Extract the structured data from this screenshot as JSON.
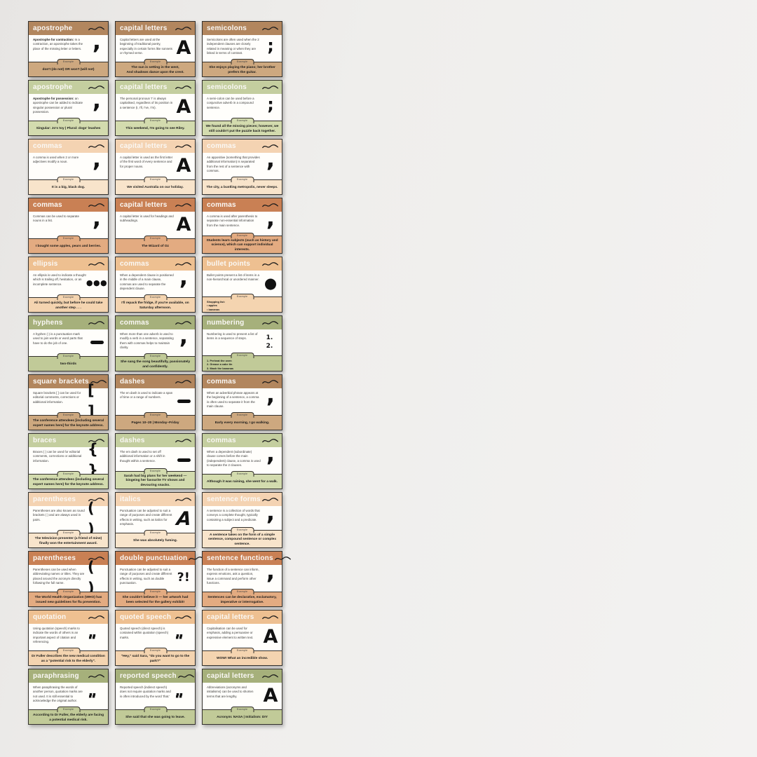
{
  "page_background": "#efeeec",
  "tab_label": "Example",
  "palette": {
    "brown": {
      "header": "#b2865e",
      "strip": "#cda87f"
    },
    "sage": {
      "header": "#c4ce9f",
      "strip": "#d3dbae"
    },
    "cream": {
      "header": "#f4d3b2",
      "strip": "#f8e4cb"
    },
    "rust": {
      "header": "#c98054",
      "strip": "#e3ab81"
    },
    "peach": {
      "header": "#eec091",
      "strip": "#f4d4b0"
    },
    "olive": {
      "header": "#a6b07b",
      "strip": "#c1ca98"
    }
  },
  "cards": [
    {
      "title": "apostrophe",
      "theme": "brown",
      "icon": "comma-icon",
      "lead": "Apostrophe for contraction:",
      "body": " In a contraction, an apostrophe takes the place of the missing letter or letters.",
      "example": "don't (do not) OR won't (will not)"
    },
    {
      "title": "capital letters",
      "theme": "brown",
      "icon": "capital-a-icon",
      "lead": "",
      "body": "Capital letters are used at the beginning of traditional poetry, especially in certain forms like sonnets or rhymed verse.",
      "example": {
        "align": "center",
        "lines": [
          "The sun is setting in the west,",
          "And shadows dance upon the crest."
        ]
      }
    },
    {
      "title": "semicolons",
      "theme": "brown",
      "icon": "semicolon-icon",
      "lead": "",
      "body": "Semicolons are often used when the 2 independent clauses are closely related in meaning or when they are linked in terms of contrast.",
      "example": "She enjoys playing the piano; her brother prefers the guitar."
    },
    {
      "title": "apostrophe",
      "theme": "sage",
      "icon": "comma-icon",
      "lead": "Apostrophe for possession:",
      "body": " an apostrophe can be added to indicate singular possession or plural possession.",
      "example": "Singular: Jo's toy  |  Plural: dogs' leashes"
    },
    {
      "title": "capital letters",
      "theme": "sage",
      "icon": "capital-a-icon",
      "lead": "",
      "body": "The personal pronoun 'I' is always capitalised, regardless of its position in a sentence (I, I'll, I've, I'm).",
      "example": "This weekend, I'm going to see Riley."
    },
    {
      "title": "semicolons",
      "theme": "sage",
      "icon": "semicolon-icon",
      "lead": "",
      "body": "A semi-colon can be used before a conjunctive adverb in a compound sentence.",
      "example": "We found all the missing pieces; however, we still couldn't put the puzzle back together."
    },
    {
      "title": "commas",
      "theme": "cream",
      "icon": "comma-icon",
      "lead": "",
      "body": "A comma is used when 2 or more adjectives modify a noun.",
      "example": "It is a big, black dog."
    },
    {
      "title": "capital letters",
      "theme": "cream",
      "icon": "capital-a-icon",
      "lead": "",
      "body": "A capital letter is used as the first letter of the first word of every sentence and for proper nouns.",
      "example": "We visited Australia on our holiday."
    },
    {
      "title": "commas",
      "theme": "cream",
      "icon": "comma-icon",
      "lead": "",
      "body": "An appositive (something that provides additional information) is separated from the rest of a sentence with commas.",
      "example": "The city, a bustling metropolis, never sleeps."
    },
    {
      "title": "commas",
      "theme": "rust",
      "icon": "comma-icon",
      "lead": "",
      "body": "Commas can be used to separate nouns in a list.",
      "example": "I bought some apples, pears and berries."
    },
    {
      "title": "capital letters",
      "theme": "rust",
      "icon": "capital-a-icon",
      "lead": "",
      "body": "A capital letter is used for headings and subheadings.",
      "example": "The Wizard of Oz"
    },
    {
      "title": "commas",
      "theme": "rust",
      "icon": "comma-icon",
      "lead": "",
      "body": "A comma is used after parenthesis to separate non-essential information from the main sentence.",
      "example": "Students learn subjects (such as history and science), which can support individual interests."
    },
    {
      "title": "ellipsis",
      "theme": "peach",
      "icon": "ellipsis-icon",
      "lead": "",
      "body": "An ellipsis is used to indicate a thought which is trailing off, hesitation, or an incomplete sentence.",
      "example": "Ali turned quickly, but before he could take another step . . ."
    },
    {
      "title": "commas",
      "theme": "peach",
      "icon": "comma-icon",
      "lead": "",
      "body": "When a dependent clause is positioned in the middle of a main clause, commas are used to separate the dependent clause.",
      "example": "I'll repack the fridge, if you're available, on Saturday afternoon."
    },
    {
      "title": "bullet points",
      "theme": "peach",
      "icon": "bullet-icon",
      "lead": "",
      "body": "Bullet points present a list of items in a non-hierarchical or unordered manner.",
      "example": {
        "align": "left",
        "lines": [
          "Shopping list:",
          "•  apples",
          "•  bananas"
        ]
      }
    },
    {
      "title": "hyphens",
      "theme": "olive",
      "icon": "hyphen-icon",
      "lead": "",
      "body": "A hyphen (-) is a punctuation mark used to join words or word parts that have to do the job of one.",
      "example": "two-thirds"
    },
    {
      "title": "commas",
      "theme": "olive",
      "icon": "comma-icon",
      "lead": "",
      "body": "When more than one adverb is used to modify a verb in a sentence, separating them with commas helps to maintain clarity.",
      "example": "She sang the song beautifully, passionately and confidently."
    },
    {
      "title": "numbering",
      "theme": "olive",
      "icon": "numbering-icon",
      "lead": "",
      "body": "Numbering is used to present a list of items in a sequence of steps.",
      "example": {
        "align": "left",
        "lines": [
          "1. Preheat the oven",
          "2. Grease a cake tin",
          "3. Mash the bananas"
        ]
      }
    },
    {
      "title": "square brackets",
      "theme": "brown",
      "icon": "square-brackets-icon",
      "lead": "",
      "body": "Square brackets [ ] can be used for editorial comments, corrections or additional information.",
      "example": "The conference attendees [including several expert names here] for the keynote address."
    },
    {
      "title": "dashes",
      "theme": "brown",
      "icon": "dash-icon",
      "lead": "",
      "body": "The en dash is used to indicate a span of time or a range of numbers.",
      "example": "Pages 10–20  |  Monday–Friday"
    },
    {
      "title": "commas",
      "theme": "brown",
      "icon": "comma-icon",
      "lead": "",
      "body": "When an adverbial phrase appears at the beginning of a sentence, a comma is often used to separate it from the main clause.",
      "example": "Early every morning, I go walking."
    },
    {
      "title": "braces",
      "theme": "sage",
      "icon": "braces-icon",
      "lead": "",
      "body": "Braces { } can be used for editorial comments, corrections or additional information.",
      "example": "The conference attendees {including several expert names here} for the keynote address."
    },
    {
      "title": "dashes",
      "theme": "sage",
      "icon": "dash-icon",
      "lead": "",
      "body": "The em dash is used to set off additional information or a shift in thought within a sentence.",
      "example": "Sarah had big plans for her weekend — bingeing her favourite TV shows and devouring snacks."
    },
    {
      "title": "commas",
      "theme": "sage",
      "icon": "comma-icon",
      "lead": "",
      "body": "When a dependent (subordinate) clause comes before the main (independent) clause, a comma is used to separate the 2 clauses.",
      "example": "Although it was raining, she went for a walk."
    },
    {
      "title": "parentheses",
      "theme": "cream",
      "icon": "parentheses-icon",
      "lead": "",
      "body": "Parentheses are also known as round brackets ( ) and are always used in pairs.",
      "example": "The television presenter (a friend of mine) finally won the entertainment award."
    },
    {
      "title": "italics",
      "theme": "cream",
      "icon": "italic-a-icon",
      "lead": "",
      "body": "Punctuation can be adjusted to suit a range of purposes and create different effects in writing, such as italics for emphasis.",
      "example": "She was absolutely fuming."
    },
    {
      "title": "sentence forms",
      "theme": "cream",
      "icon": "comma-icon",
      "lead": "",
      "body": "A sentence is a collection of words that conveys a complete thought, typically containing a subject and a predicate.",
      "example": "A sentence takes on the form of a simple sentence, compound sentence or complex sentence."
    },
    {
      "title": "parentheses",
      "theme": "rust",
      "icon": "parentheses-icon",
      "lead": "",
      "body": "Parentheses can be used when abbreviating names or titles. They are placed around the acronym directly following the full name.",
      "example": "The World Health Organization (WHO) has issued new guidelines for flu prevention."
    },
    {
      "title": "double punctuation",
      "theme": "rust",
      "icon": "double-punctuation-icon",
      "lead": "",
      "body": "Punctuation can be adjusted to suit a range of purposes and create different effects in writing, such as double punctuation.",
      "example": "She couldn't believe it — her artwork had been selected for the gallery exhibit!"
    },
    {
      "title": "sentence functions",
      "theme": "rust",
      "icon": "comma-icon",
      "lead": "",
      "body": "The function of a sentence can inform, express emotions, ask a question, issue a command and perform other functions.",
      "example": "Sentences can be declarative, exclamatory, imperative or interrogative."
    },
    {
      "title": "quotation",
      "theme": "peach",
      "icon": "quotes-icon",
      "lead": "",
      "body": "Using quotation (speech) marks to indicate the words of others is an important aspect of citation and referencing.",
      "example": "Dr Fuller describes the new medical condition as a \"potential risk to the elderly\"."
    },
    {
      "title": "quoted speech",
      "theme": "peach",
      "icon": "quotes-icon",
      "lead": "",
      "body": "Quoted speech (direct speech) is contained within quotation (speech) marks.",
      "example": "\"Hey,\" said Sara, \"do you want to go to the park?\""
    },
    {
      "title": "capital letters",
      "theme": "peach",
      "icon": "capital-a-icon",
      "lead": "",
      "body": "Capitalisation can be used for emphasis, adding a persuasive or expressive element to written text.",
      "example": "WOW! What an incredible show."
    },
    {
      "title": "paraphrasing",
      "theme": "olive",
      "icon": "quotes-icon",
      "lead": "",
      "body": "When paraphrasing the words of another person, quotation marks are not used. It is still essential to acknowledge the original author.",
      "example": "According to Dr Fuller, the elderly are facing a potential medical risk."
    },
    {
      "title": "reported speech",
      "theme": "olive",
      "icon": "quotes-icon",
      "lead": "",
      "body": "Reported speech (indirect speech) does not require quotation marks and is often introduced by the word 'that.'",
      "example": "She said that she was going to leave."
    },
    {
      "title": "capital letters",
      "theme": "olive",
      "icon": "capital-a-icon",
      "lead": "",
      "body": "Abbreviations (acronyms and initialisms) can be used to shorten terms that are lengthy.",
      "example": "Acronym: NASA  |  Initialism: DIY"
    }
  ]
}
